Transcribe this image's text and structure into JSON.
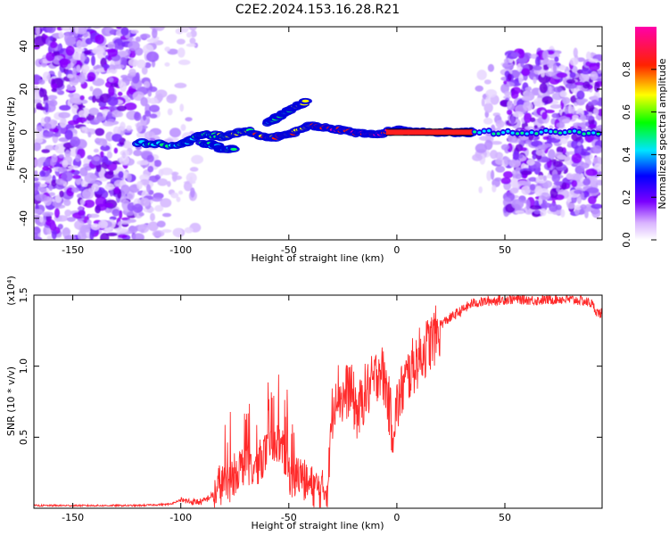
{
  "page": {
    "title": "C2E2.2024.153.16.28.R21"
  },
  "colors": {
    "snr_line": "#ff2a2a",
    "spectro_core": "#00cc66"
  },
  "colorbar": {
    "label": "Normalized spectral amplitude",
    "ticks": [
      "0.0",
      "0.2",
      "0.4",
      "0.6",
      "0.8"
    ],
    "tick_values": [
      0.0,
      0.2,
      0.4,
      0.6,
      0.8
    ],
    "range": [
      0.0,
      1.0
    ],
    "colormap": "rainbow: white-violet-blue-cyan-green-yellow-red-magenta"
  },
  "chart_data": [
    {
      "type": "heatmap",
      "xlabel": "Height of straight line (km)",
      "ylabel": "Frequency (Hz)",
      "xlim": [
        -168,
        95
      ],
      "ylim": [
        -50,
        49
      ],
      "xticks": [
        "-150",
        "-100",
        "-50",
        "0",
        "50"
      ],
      "xtick_values": [
        -150,
        -100,
        -50,
        0,
        50
      ],
      "yticks": [
        "-40",
        "-20",
        "0",
        "20",
        "40"
      ],
      "ytick_values": [
        -40,
        -20,
        0,
        20,
        40
      ],
      "main_track": {
        "x": [
          -120,
          -100,
          -90,
          -80,
          -70,
          -60,
          -50,
          -40,
          -30,
          -20,
          -10,
          0,
          10,
          20,
          30,
          35
        ],
        "y": [
          -5,
          -6,
          -1,
          -2,
          1,
          -3,
          -1,
          3,
          2,
          0,
          -1,
          1,
          0,
          0,
          0,
          0
        ]
      },
      "upper_branch": {
        "x": [
          -60,
          -55,
          -50,
          -45,
          -42
        ],
        "y": [
          4,
          7,
          10,
          13,
          14
        ]
      },
      "lower_branch": {
        "x": [
          -90,
          -85,
          -80,
          -75
        ],
        "y": [
          -5,
          -6,
          -8,
          -8
        ]
      }
    },
    {
      "type": "line",
      "xlabel": "Height of straight line (km)",
      "ylabel": "SNR (10 * v/v)",
      "y_multiplier": "(x10⁴)",
      "xlim": [
        -168,
        95
      ],
      "ylim": [
        0,
        1.5
      ],
      "xticks": [
        "-150",
        "-100",
        "-50",
        "0",
        "50"
      ],
      "xtick_values": [
        -150,
        -100,
        -50,
        0,
        50
      ],
      "yticks": [
        "0.5",
        "1.0",
        "1.5"
      ],
      "ytick_values": [
        0.5,
        1.0,
        1.5
      ],
      "series": [
        {
          "x": [
            -168,
            -150,
            -120,
            -105,
            -100,
            -95,
            -90,
            -85,
            -82,
            -78,
            -74,
            -70,
            -66,
            -62,
            -58,
            -55,
            -52,
            -48,
            -45,
            -42,
            -38,
            -35,
            -32,
            -30,
            -28,
            -25,
            -22,
            -18,
            -15,
            -12,
            -10,
            -8,
            -5,
            -2,
            0,
            3,
            6,
            10,
            15,
            20,
            25,
            30,
            35,
            45,
            55,
            65,
            75,
            85,
            90,
            93
          ],
          "y": [
            0.02,
            0.02,
            0.02,
            0.03,
            0.06,
            0.05,
            0.05,
            0.1,
            0.2,
            0.2,
            0.3,
            0.35,
            0.3,
            0.4,
            0.45,
            0.5,
            0.4,
            0.2,
            0.3,
            0.2,
            0.18,
            0.15,
            0.18,
            0.7,
            0.9,
            0.8,
            0.9,
            0.7,
            0.85,
            0.9,
            0.95,
            1.05,
            0.9,
            0.6,
            0.75,
            0.9,
            1.0,
            1.1,
            1.2,
            1.3,
            1.35,
            1.4,
            1.45,
            1.47,
            1.48,
            1.47,
            1.48,
            1.47,
            1.45,
            1.38
          ],
          "color": "#ff2a2a"
        }
      ]
    }
  ]
}
